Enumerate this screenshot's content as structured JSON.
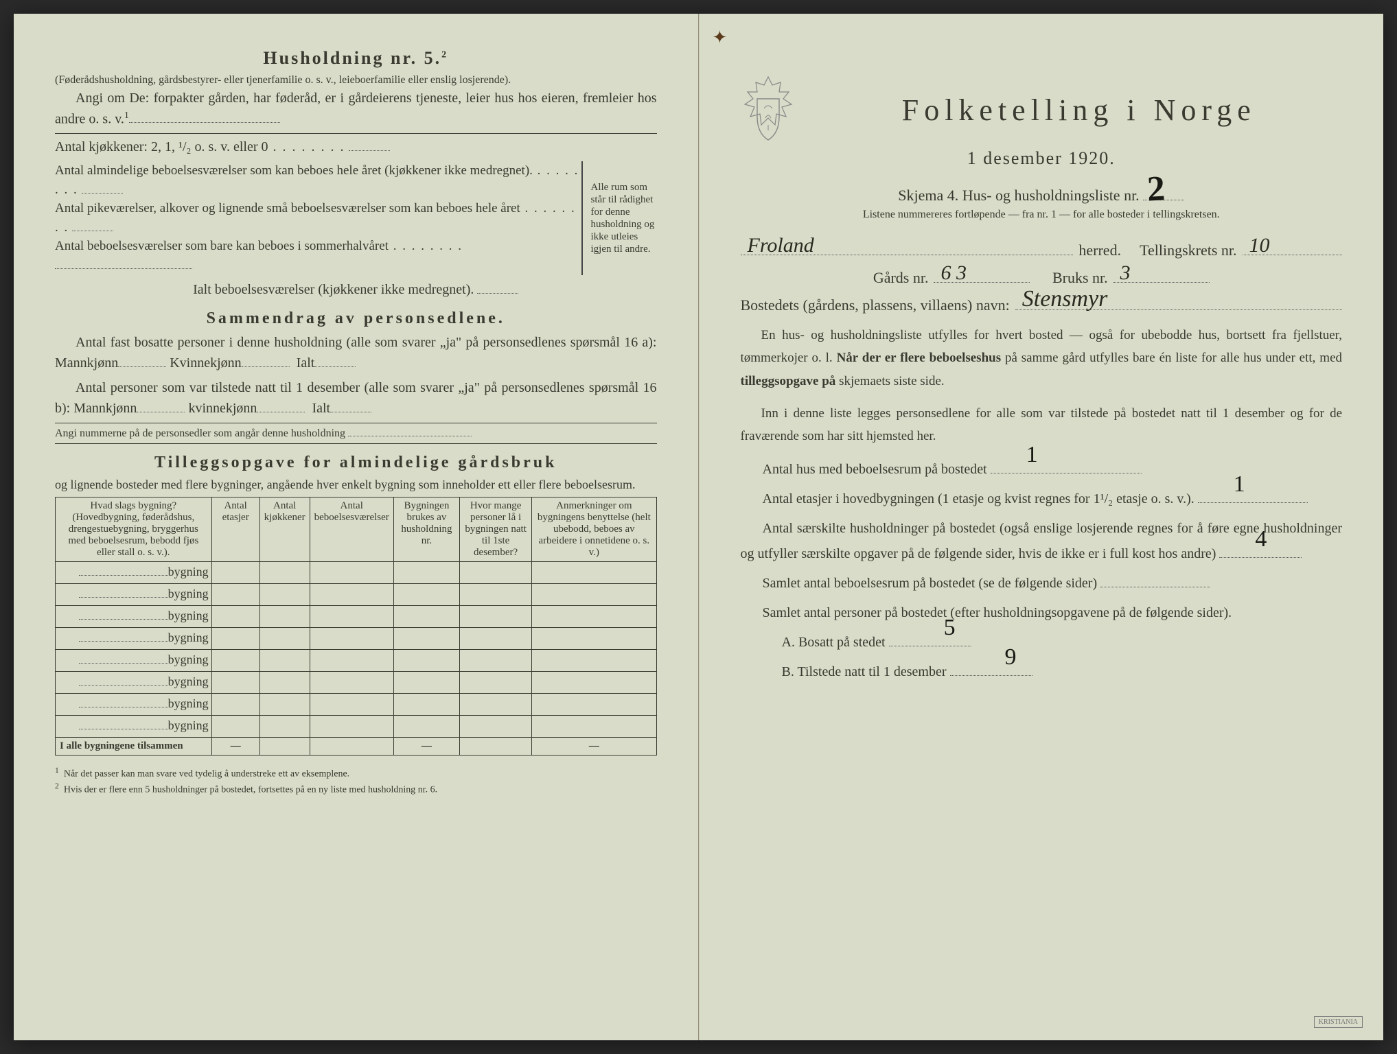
{
  "colors": {
    "paper": "#d8dcc8",
    "ink": "#3a3a30",
    "handwriting": "#1a1a15",
    "border": "#3a3a30"
  },
  "left": {
    "title": "Husholdning nr. 5.",
    "title_sup": "2",
    "sub1": "(Føderådshusholdning, gårdsbestyrer- eller tjenerfamilie o. s. v., leieboerfamilie eller enslig losjerende).",
    "angi": "Angi om De: forpakter gården, har føderåd, er i gårdeierens tjeneste, leier hus hos eieren, fremleier hos andre o. s. v.",
    "angi_sup": "1",
    "kjokkener": "Antal kjøkkener: 2, 1, ¹/₂ o. s. v. eller 0",
    "brace_lines": [
      "Antal almindelige beboelsesværelser som kan beboes hele året (kjøkkener ikke medregnet).",
      "Antal pikeværelser, alkover og lignende små beboelsesværelser som kan beboes hele året",
      "Antal beboelsesværelser som bare kan beboes i sommerhalvåret"
    ],
    "brace_right": "Alle rum som står til rådighet for denne husholdning og ikke utleies igjen til andre.",
    "ialt": "Ialt beboelsesværelser (kjøkkener ikke medregnet).",
    "sec2_title": "Sammendrag av personsedlene.",
    "sec2_a": "Antal fast bosatte personer i denne husholdning (alle som svarer „ja\" på personsedlenes spørsmål 16 a): Mannkjønn",
    "kvinne": "Kvinnekjønn",
    "ialt_label": "Ialt",
    "sec2_b": "Antal personer som var tilstede natt til 1 desember (alle som svarer „ja\" på personsedlenes spørsmål 16 b): Mannkjønn",
    "angi_num": "Angi nummerne på de personsedler som angår denne husholdning",
    "sec3_title": "Tilleggsopgave for almindelige gårdsbruk",
    "sec3_sub": "og lignende bosteder med flere bygninger, angående hver enkelt bygning som inneholder ett eller flere beboelsesrum.",
    "table_headers": [
      "Hvad slags bygning?\n(Hovedbygning, føderådshus, drengestuebygning, bryggerhus med beboelsesrum, bebodd fjøs eller stall o. s. v.).",
      "Antal etasjer",
      "Antal kjøkkener",
      "Antal beboelsesværelser",
      "Bygningen brukes av husholdning nr.",
      "Hvor mange personer lå i bygningen natt til 1ste desember?",
      "Anmerkninger om bygningens benyttelse (helt ubebodd, beboes av arbeidere i onnetidene o. s. v.)"
    ],
    "bygning_label": "bygning",
    "bygning_rows": 8,
    "sum_label": "I alle bygningene tilsammen",
    "dash": "—",
    "footnote1": "Når det passer kan man svare ved tydelig å understreke ett av eksemplene.",
    "footnote2": "Hvis der er flere enn 5 husholdninger på bostedet, fortsettes på en ny liste med husholdning nr. 6."
  },
  "right": {
    "main_title": "Folketelling i Norge",
    "date": "1 desember 1920.",
    "skjema": "Skjema 4.  Hus- og husholdningsliste nr.",
    "skjema_nr": "2",
    "list_note": "Listene nummereres fortløpende — fra nr. 1 — for alle bosteder i tellingskretsen.",
    "herred_label": "herred.",
    "herred_value": "Froland",
    "tellingskrets_label": "Tellingskrets nr.",
    "tellingskrets_value": "10",
    "gards_label": "Gårds nr.",
    "gards_value": "6 3",
    "bruks_label": "Bruks nr.",
    "bruks_value": "3",
    "bosted_label": "Bostedets (gårdens, plassens, villaens) navn:",
    "bosted_value": "Stensmyr",
    "body1": "En hus- og husholdningsliste utfylles for hvert bosted — også for ubebodde hus, bortsett fra fjellstuer, tømmerkojer o. l. Når der er flere beboelseshus på samme gård utfylles bare én liste for alle hus under ett, med tilleggsopgave på skjemaets siste side.",
    "body2": "Inn i denne liste legges personsedlene for alle som var tilstede på bostedet natt til 1 desember og for de fraværende som har sitt hjemsted her.",
    "q1": "Antal hus med beboelsesrum på bostedet",
    "q1_value": "1",
    "q2": "Antal etasjer i hovedbygningen (1 etasje og kvist regnes for 1¹/₂ etasje o. s. v.).",
    "q2_value": "1",
    "q3": "Antal særskilte husholdninger på bostedet (også enslige losjerende regnes for å føre egne husholdninger og utfyller særskilte opgaver på de følgende sider, hvis de ikke er i full kost hos andre)",
    "q3_value": "4",
    "q4": "Samlet antal beboelsesrum på bostedet (se de følgende sider)",
    "q5": "Samlet antal personer på bostedet (efter husholdningsopgavene på de følgende sider).",
    "qA": "A.  Bosatt på stedet",
    "qA_value": "5",
    "qB": "B.  Tilstede natt til 1 desember",
    "qB_value": "9",
    "printer": "KRISTIANIA"
  }
}
